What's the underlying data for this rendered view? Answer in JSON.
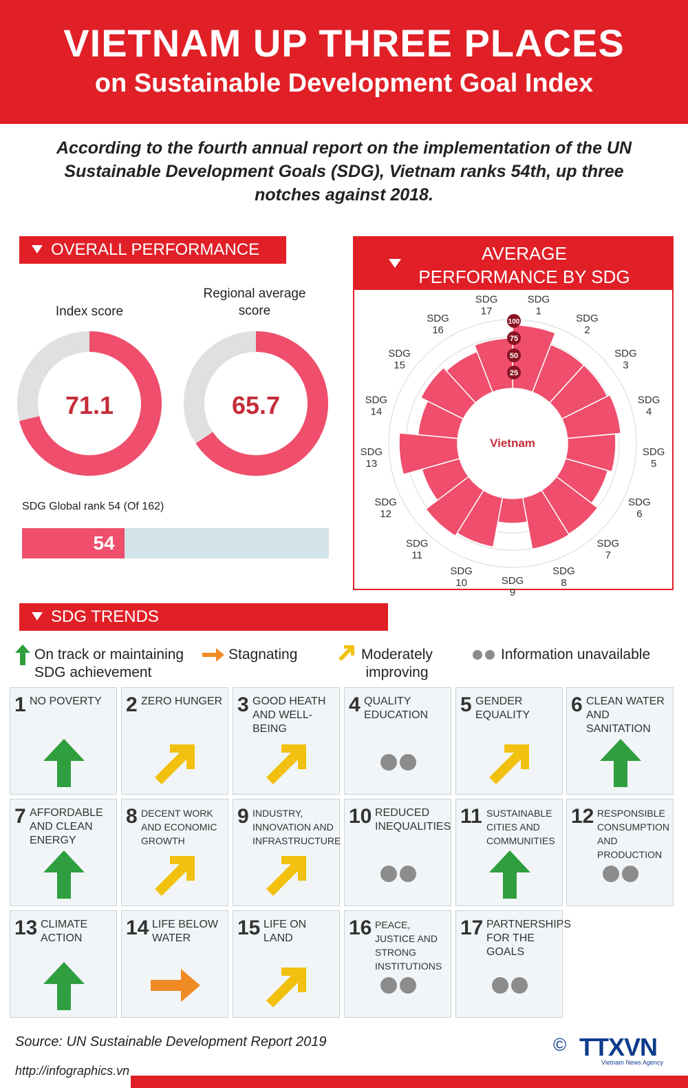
{
  "header": {
    "title": "VIETNAM UP THREE PLACES",
    "subtitle": "on Sustainable Development Goal Index"
  },
  "intro": "According to the fourth annual report on the implementation of the UN Sustainable Development Goals (SDG), Vietnam ranks 54th, up three notches against 2018.",
  "overall": {
    "section_title": "OVERALL PERFORMANCE",
    "index_label": "Index score",
    "index_value": "71.1",
    "regional_label": "Regional average score",
    "regional_value": "65.7",
    "rank_label": "SDG Global rank 54 (Of 162)",
    "rank_value": "54"
  },
  "radar": {
    "title": "AVERAGE PERFORMANCE BY SDG",
    "center_label": "Vietnam",
    "scale_labels": [
      "25",
      "50",
      "75",
      "100"
    ]
  },
  "chart_data": [
    {
      "type": "pie",
      "title": "Index score",
      "values": [
        71.1,
        28.9
      ],
      "max": 100,
      "colors": [
        "#ef4e6c",
        "#e0e0e0"
      ]
    },
    {
      "type": "pie",
      "title": "Regional average score",
      "values": [
        65.7,
        34.3
      ],
      "max": 100,
      "colors": [
        "#ef4e6c",
        "#e0e0e0"
      ]
    },
    {
      "type": "bar",
      "title": "SDG Global rank 54 (Of 162)",
      "values": [
        54
      ],
      "max": 162,
      "colors": [
        "#ef4e6c",
        "#d3e3ea"
      ]
    },
    {
      "type": "area",
      "title": "AVERAGE PERFORMANCE BY SDG",
      "categories": [
        "SDG 1",
        "SDG 2",
        "SDG 3",
        "SDG 4",
        "SDG 5",
        "SDG 6",
        "SDG 7",
        "SDG 8",
        "SDG 9",
        "SDG 10",
        "SDG 11",
        "SDG 12",
        "SDG 13",
        "SDG 14",
        "SDG 15",
        "SDG 16",
        "SDG 17"
      ],
      "values": [
        92,
        74,
        74,
        78,
        70,
        64,
        75,
        76,
        36,
        73,
        78,
        57,
        85,
        58,
        69,
        63,
        73
      ],
      "ylim": [
        0,
        100
      ],
      "ticks": [
        25,
        50,
        75,
        100
      ],
      "colors": [
        "#ef4e6c"
      ]
    }
  ],
  "trends": {
    "section_title": "SDG TRENDS",
    "legend": {
      "on_track": "On track or maintaining SDG achievement",
      "stagnating": "Stagnating",
      "moderate": "Moderately improving",
      "unavailable": "Information unavailable"
    },
    "colors": {
      "on_track": "#2f9e3f",
      "stagnating": "#f08a24",
      "moderate": "#f2c10f",
      "unavailable": "#8c8c8c"
    },
    "goals": [
      {
        "num": "1",
        "name": "NO POVERTY",
        "trend": "on_track"
      },
      {
        "num": "2",
        "name": "ZERO HUNGER",
        "trend": "moderate"
      },
      {
        "num": "3",
        "name": "GOOD HEATH AND WELL-BEING",
        "trend": "moderate"
      },
      {
        "num": "4",
        "name": "QUALITY EDUCATION",
        "trend": "unavailable"
      },
      {
        "num": "5",
        "name": "GENDER EQUALITY",
        "trend": "moderate"
      },
      {
        "num": "6",
        "name": "CLEAN WATER AND SANITATION",
        "trend": "on_track"
      },
      {
        "num": "7",
        "name": "AFFORDABLE AND CLEAN ENERGY",
        "trend": "on_track"
      },
      {
        "num": "8",
        "name": "DECENT WORK AND ECONOMIC GROWTH",
        "trend": "moderate"
      },
      {
        "num": "9",
        "name": "INDUSTRY, INNOVATION AND INFRASTRUCTURE",
        "trend": "moderate"
      },
      {
        "num": "10",
        "name": "REDUCED INEQUALITIES",
        "trend": "unavailable"
      },
      {
        "num": "11",
        "name": "SUSTAINABLE CITIES AND COMMUNITIES",
        "trend": "on_track"
      },
      {
        "num": "12",
        "name": "RESPONSIBLE CONSUMPTION AND PRODUCTION",
        "trend": "unavailable"
      },
      {
        "num": "13",
        "name": "CLIMATE ACTION",
        "trend": "on_track"
      },
      {
        "num": "14",
        "name": "LIFE BELOW WATER",
        "trend": "stagnating"
      },
      {
        "num": "15",
        "name": "LIFE ON LAND",
        "trend": "moderate"
      },
      {
        "num": "16",
        "name": "PEACE, JUSTICE AND STRONG INSTITUTIONS",
        "trend": "unavailable"
      },
      {
        "num": "17",
        "name": "PARTNERSHIPS FOR THE GOALS",
        "trend": "unavailable"
      }
    ]
  },
  "footer": {
    "source": "Source: UN Sustainable Development Report 2019",
    "url": "http://infographics.vn",
    "copyright": "©",
    "logo_text": "TTXVN",
    "logo_sub": "Vietnam News Agency"
  },
  "brand_color": "#e01f27"
}
